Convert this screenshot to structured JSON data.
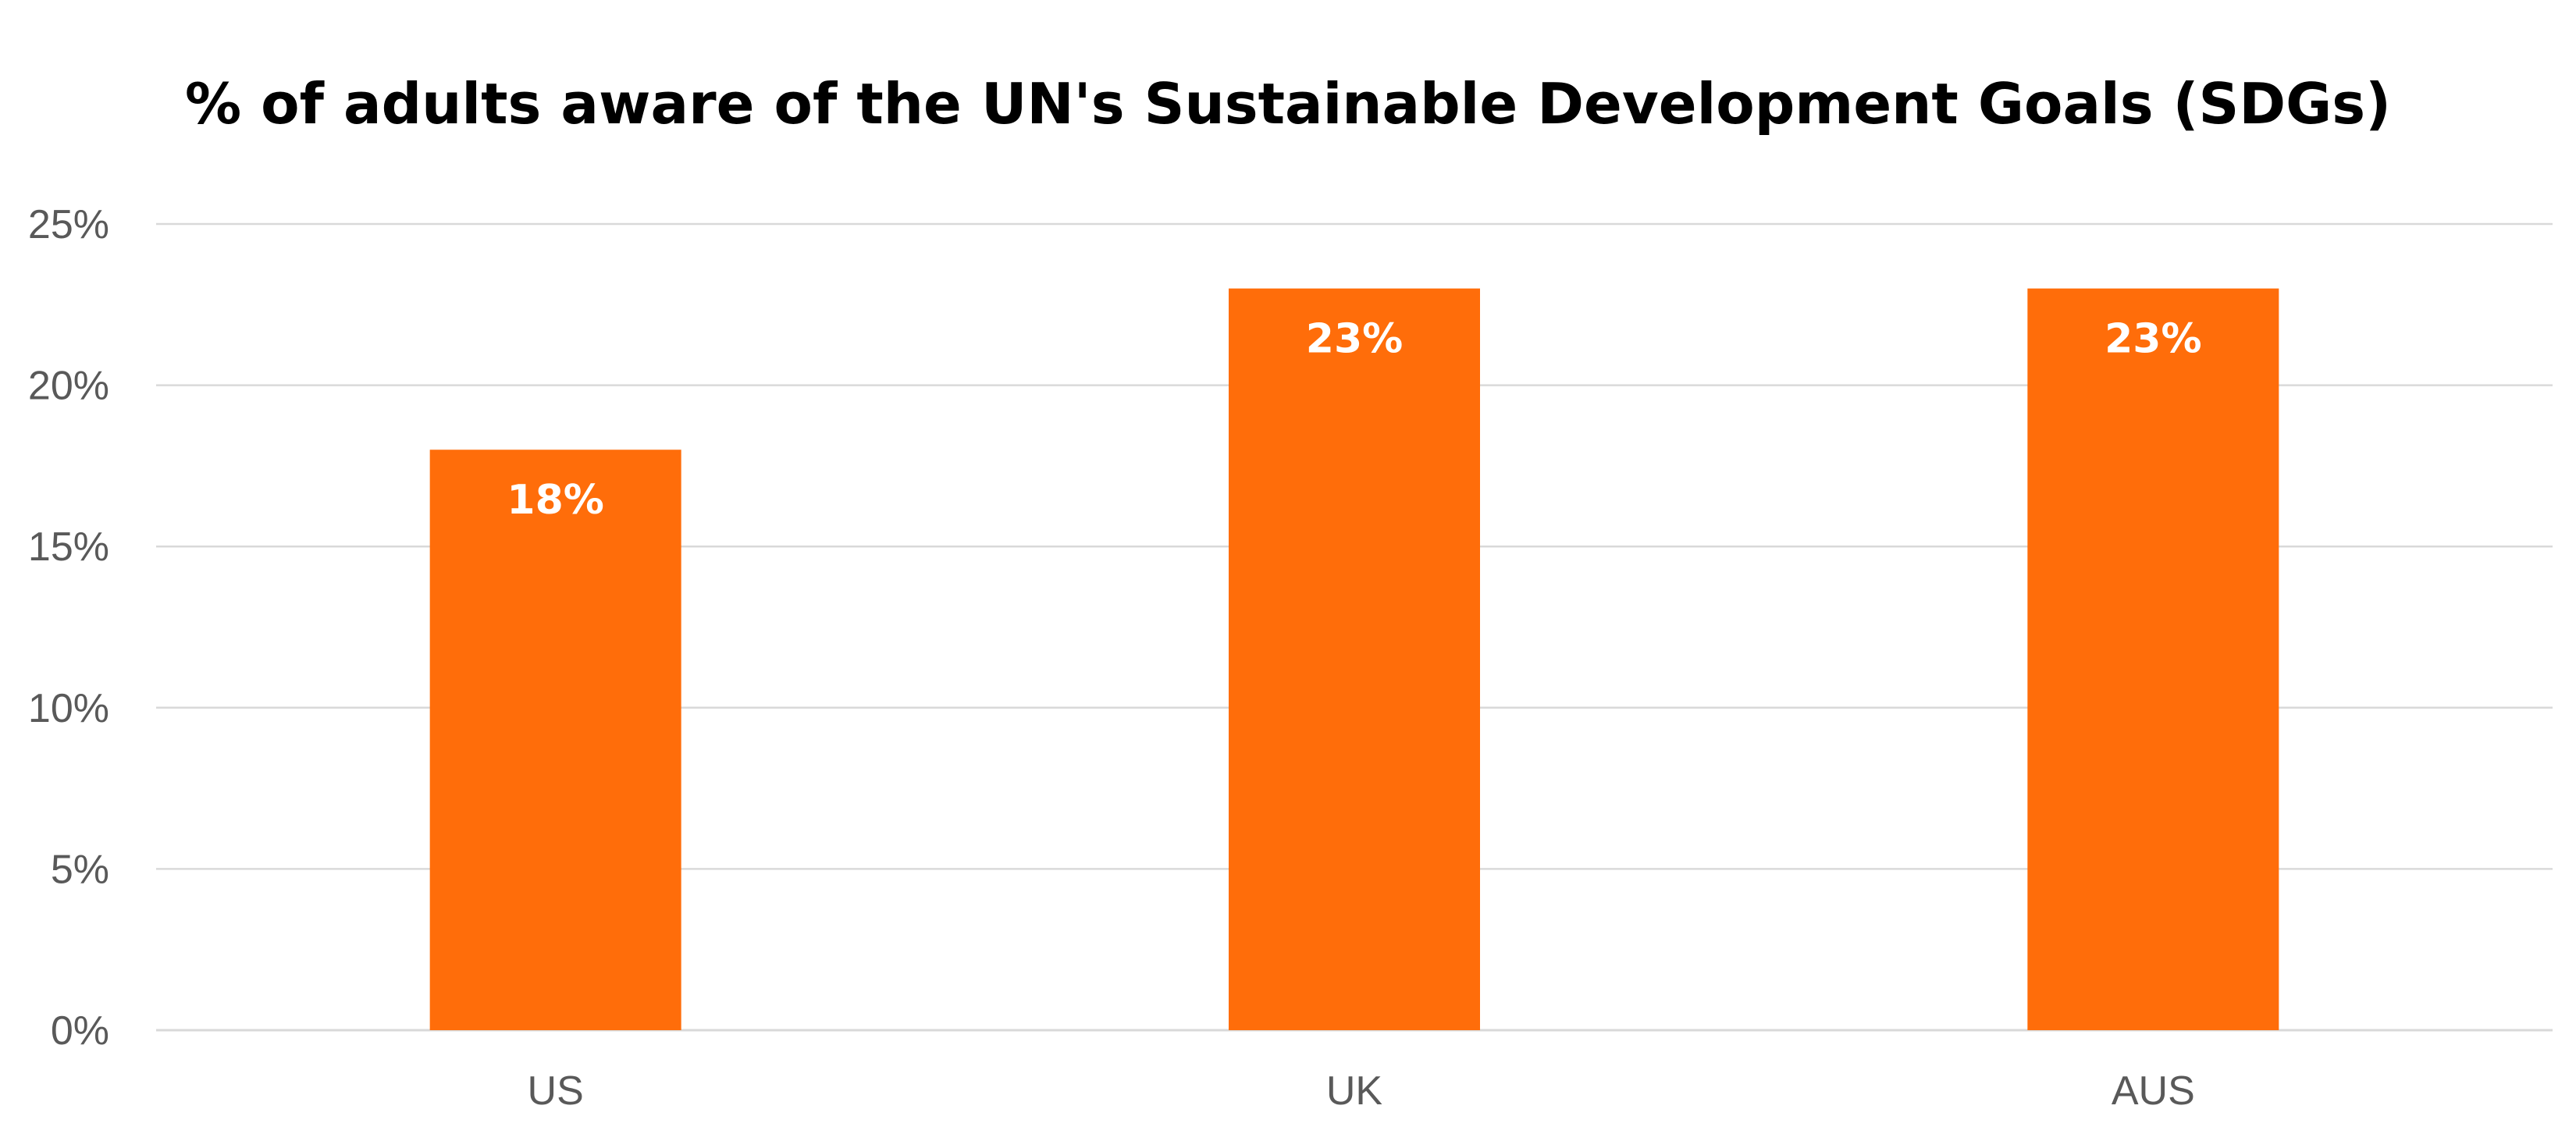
{
  "chart_data": {
    "type": "bar",
    "title": "% of adults aware of the UN's Sustainable Development Goals (SDGs)",
    "xlabel": "",
    "ylabel": "",
    "categories": [
      "US",
      "UK",
      "AUS"
    ],
    "values": [
      18,
      23,
      23
    ],
    "data_labels": [
      "18%",
      "23%",
      "23%"
    ],
    "ylim": [
      0,
      25
    ],
    "y_ticks": [
      0,
      5,
      10,
      15,
      20,
      25
    ],
    "y_tick_labels": [
      "0%",
      "5%",
      "10%",
      "15%",
      "20%",
      "25%"
    ],
    "grid": true,
    "legend": "none",
    "bar_color": "#ff6d0a"
  }
}
